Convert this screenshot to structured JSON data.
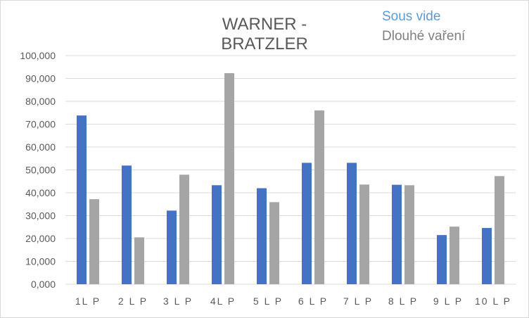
{
  "chart_data": {
    "type": "bar",
    "title": "WARNER - BRATZLER",
    "xlabel": "",
    "ylabel": "",
    "categories": [
      "1L P",
      "2 L P",
      "3 L P",
      "4L P",
      "5 L P",
      "6 L P",
      "7 L P",
      "8 L P",
      "9 L P",
      "10 L P"
    ],
    "series": [
      {
        "name": "Sous vide",
        "color": "#4472c4",
        "values": [
          73.8,
          51.9,
          32.2,
          43.3,
          42.0,
          53.1,
          53.1,
          43.5,
          21.5,
          24.6
        ]
      },
      {
        "name": "Dlouhé vaření",
        "color": "#a5a5a5",
        "values": [
          37.2,
          20.5,
          47.9,
          92.3,
          35.9,
          76.0,
          43.6,
          43.3,
          25.2,
          47.3
        ]
      }
    ],
    "ylim": [
      0,
      100
    ],
    "yticks": [
      "0,000",
      "10,000",
      "20,000",
      "30,000",
      "40,000",
      "50,000",
      "60,000",
      "70,000",
      "80,000",
      "90,000",
      "100,000"
    ],
    "legend_position": "top-right",
    "legend_text_colors": [
      "#5b9bd5",
      "#7f7f7f"
    ],
    "grid": true,
    "gridline_color": "#d9d9d9"
  }
}
